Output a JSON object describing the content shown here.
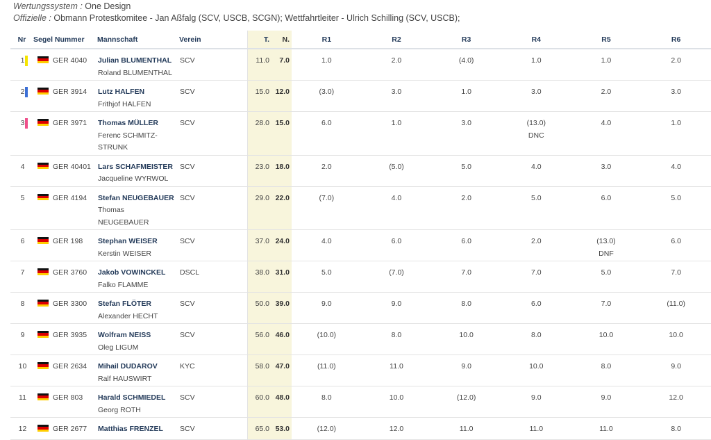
{
  "meta": {
    "line1_label": "Wertungssystem :",
    "line1_value": "One Design",
    "line2_label": "Offizielle :",
    "line2_value": "Obmann Protestkomitee - Jan Aßfalg (SCV, USCB, SCGN); Wettfahrtleiter - Ulrich Schilling (SCV, USCB);"
  },
  "columns": {
    "nr": "Nr",
    "segel": "Segel Nummer",
    "mannschaft": "Mannschaft",
    "verein": "Verein",
    "t": "T.",
    "n": "N.",
    "r1": "R1",
    "r2": "R2",
    "r3": "R3",
    "r4": "R4",
    "r5": "R5",
    "r6": "R6"
  },
  "colors": {
    "gold": "#f5e400",
    "silver": "#3b6fd6",
    "bronze": "#ef4f8a",
    "header_text": "#243b5a",
    "total_bg": "#f8f5dc"
  },
  "flag_icon": "germany-flag-icon",
  "rows": [
    {
      "nr": "1",
      "medal": "gold",
      "sail": "GER 4040",
      "skipper": "Julian BLUMENTHAL",
      "crew": [
        "Roland BLUMENTHAL"
      ],
      "club": "SCV",
      "t": "11.0",
      "n": "7.0",
      "r": [
        [
          "1.0"
        ],
        [
          "2.0"
        ],
        [
          "(4.0)"
        ],
        [
          "1.0"
        ],
        [
          "1.0"
        ],
        [
          "2.0"
        ]
      ]
    },
    {
      "nr": "2",
      "medal": "silver",
      "sail": "GER 3914",
      "skipper": "Lutz HALFEN",
      "crew": [
        "Frithjof HALFEN"
      ],
      "club": "SCV",
      "t": "15.0",
      "n": "12.0",
      "r": [
        [
          "(3.0)"
        ],
        [
          "3.0"
        ],
        [
          "1.0"
        ],
        [
          "3.0"
        ],
        [
          "2.0"
        ],
        [
          "3.0"
        ]
      ]
    },
    {
      "nr": "3",
      "medal": "bronze",
      "sail": "GER 3971",
      "skipper": "Thomas MÜLLER",
      "crew": [
        "Ferenc SCHMITZ-",
        "STRUNK"
      ],
      "club": "SCV",
      "t": "28.0",
      "n": "15.0",
      "r": [
        [
          "6.0"
        ],
        [
          "1.0"
        ],
        [
          "3.0"
        ],
        [
          "(13.0)",
          "DNC"
        ],
        [
          "4.0"
        ],
        [
          "1.0"
        ]
      ]
    },
    {
      "nr": "4",
      "medal": "",
      "sail": "GER 40401",
      "skipper": "Lars SCHAFMEISTER",
      "crew": [
        "Jacqueline WYRWOL"
      ],
      "club": "SCV",
      "t": "23.0",
      "n": "18.0",
      "r": [
        [
          "2.0"
        ],
        [
          "(5.0)"
        ],
        [
          "5.0"
        ],
        [
          "4.0"
        ],
        [
          "3.0"
        ],
        [
          "4.0"
        ]
      ]
    },
    {
      "nr": "5",
      "medal": "",
      "sail": "GER 4194",
      "skipper": "Stefan NEUGEBAUER",
      "crew": [
        "Thomas",
        "NEUGEBAUER"
      ],
      "club": "SCV",
      "t": "29.0",
      "n": "22.0",
      "r": [
        [
          "(7.0)"
        ],
        [
          "4.0"
        ],
        [
          "2.0"
        ],
        [
          "5.0"
        ],
        [
          "6.0"
        ],
        [
          "5.0"
        ]
      ]
    },
    {
      "nr": "6",
      "medal": "",
      "sail": "GER 198",
      "skipper": "Stephan WEISER",
      "crew": [
        "Kerstin WEISER"
      ],
      "club": "SCV",
      "t": "37.0",
      "n": "24.0",
      "r": [
        [
          "4.0"
        ],
        [
          "6.0"
        ],
        [
          "6.0"
        ],
        [
          "2.0"
        ],
        [
          "(13.0)",
          "DNF"
        ],
        [
          "6.0"
        ]
      ]
    },
    {
      "nr": "7",
      "medal": "",
      "sail": "GER 3760",
      "skipper": "Jakob VOWINCKEL",
      "crew": [
        "Falko FLAMME"
      ],
      "club": "DSCL",
      "t": "38.0",
      "n": "31.0",
      "r": [
        [
          "5.0"
        ],
        [
          "(7.0)"
        ],
        [
          "7.0"
        ],
        [
          "7.0"
        ],
        [
          "5.0"
        ],
        [
          "7.0"
        ]
      ]
    },
    {
      "nr": "8",
      "medal": "",
      "sail": "GER 3300",
      "skipper": "Stefan FLÖTER",
      "crew": [
        "Alexander HECHT"
      ],
      "club": "SCV",
      "t": "50.0",
      "n": "39.0",
      "r": [
        [
          "9.0"
        ],
        [
          "9.0"
        ],
        [
          "8.0"
        ],
        [
          "6.0"
        ],
        [
          "7.0"
        ],
        [
          "(11.0)"
        ]
      ]
    },
    {
      "nr": "9",
      "medal": "",
      "sail": "GER 3935",
      "skipper": "Wolfram NEISS",
      "crew": [
        "Oleg LIGUM"
      ],
      "club": "SCV",
      "t": "56.0",
      "n": "46.0",
      "r": [
        [
          "(10.0)"
        ],
        [
          "8.0"
        ],
        [
          "10.0"
        ],
        [
          "8.0"
        ],
        [
          "10.0"
        ],
        [
          "10.0"
        ]
      ]
    },
    {
      "nr": "10",
      "medal": "",
      "sail": "GER 2634",
      "skipper": "Mihail DUDAROV",
      "crew": [
        "Ralf HAUSWIRT"
      ],
      "club": "KYC",
      "t": "58.0",
      "n": "47.0",
      "r": [
        [
          "(11.0)"
        ],
        [
          "11.0"
        ],
        [
          "9.0"
        ],
        [
          "10.0"
        ],
        [
          "8.0"
        ],
        [
          "9.0"
        ]
      ]
    },
    {
      "nr": "11",
      "medal": "",
      "sail": "GER 803",
      "skipper": "Harald SCHMIEDEL",
      "crew": [
        "Georg ROTH"
      ],
      "club": "SCV",
      "t": "60.0",
      "n": "48.0",
      "r": [
        [
          "8.0"
        ],
        [
          "10.0"
        ],
        [
          "(12.0)"
        ],
        [
          "9.0"
        ],
        [
          "9.0"
        ],
        [
          "12.0"
        ]
      ]
    },
    {
      "nr": "12",
      "medal": "",
      "sail": "GER 2677",
      "skipper": "Matthias FRENZEL",
      "crew": [],
      "club": "SCV",
      "t": "65.0",
      "n": "53.0",
      "r": [
        [
          "(12.0)"
        ],
        [
          "12.0"
        ],
        [
          "11.0"
        ],
        [
          "11.0"
        ],
        [
          "11.0"
        ],
        [
          "8.0"
        ]
      ]
    }
  ]
}
